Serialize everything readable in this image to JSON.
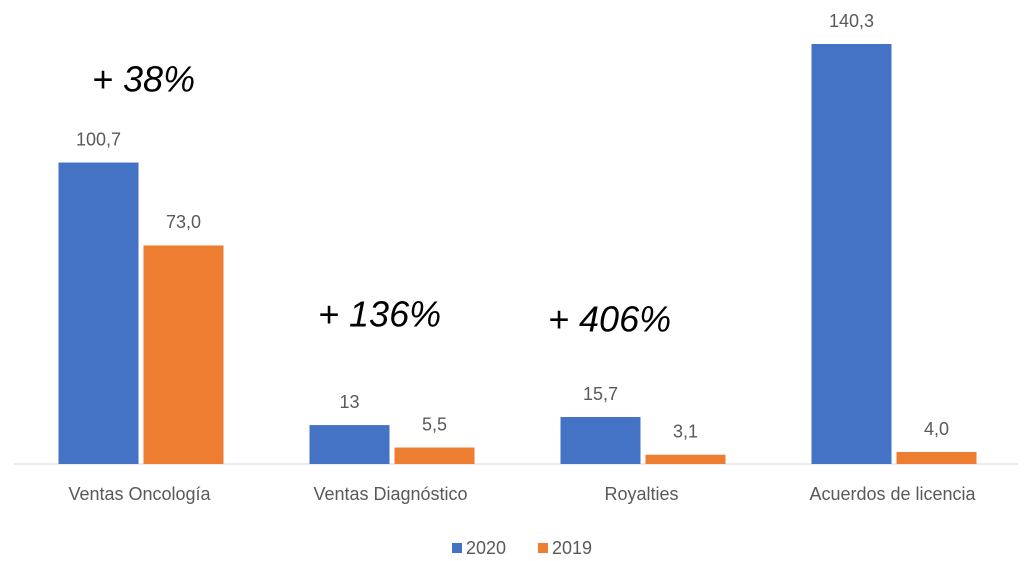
{
  "chart_data": {
    "type": "bar",
    "categories": [
      "Ventas Oncología",
      "Ventas Diagnóstico",
      "Royalties",
      "Acuerdos de licencia"
    ],
    "series": [
      {
        "name": "2020",
        "color": "#4472c4",
        "values": [
          100.7,
          13,
          15.7,
          140.3
        ],
        "value_labels": [
          "100,7",
          "13",
          "15,7",
          "140,3"
        ]
      },
      {
        "name": "2019",
        "color": "#ed7d31",
        "values": [
          73.0,
          5.5,
          3.1,
          4.0
        ],
        "value_labels": [
          "73,0",
          "5,5",
          "3,1",
          "4,0"
        ]
      }
    ],
    "annotations": [
      "+ 38%",
      "+ 136%",
      "+ 406%"
    ],
    "legend": "bottom"
  }
}
